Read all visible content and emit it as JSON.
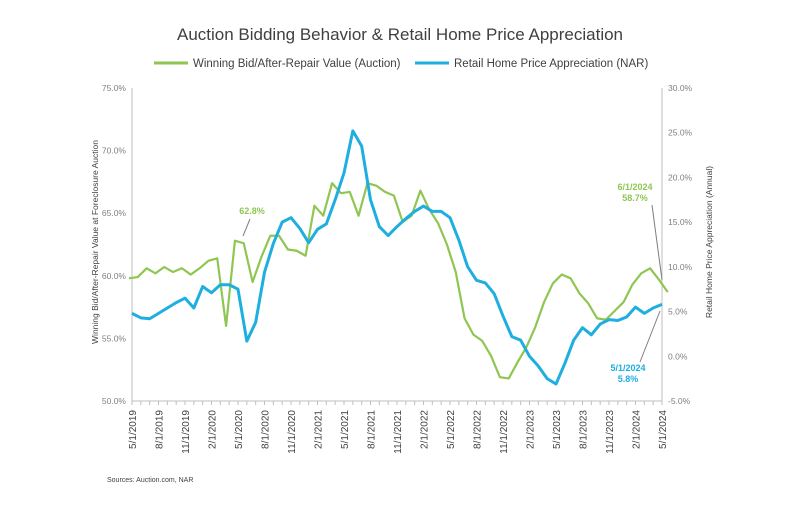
{
  "colors": {
    "auction": "#8fc652",
    "retail": "#1eaee0",
    "axis": "#bfbfbf"
  },
  "chart_data": {
    "type": "line",
    "title": "Auction Bidding Behavior & Retail Home Price Appreciation",
    "legend": [
      "Winning Bid/After-Repair Value (Auction)",
      "Retail Home Price Appreciation (NAR)"
    ],
    "legend_position": "top",
    "ylabel_left": "Winning Bid/After-Repair Value at Foreclosure Auction",
    "ylabel_right": "Retail Home Price Appreciation (Annual)",
    "ylim_left": [
      50,
      75
    ],
    "ylim_right": [
      -5,
      30
    ],
    "yticks_left": [
      "50.0%",
      "55.0%",
      "60.0%",
      "65.0%",
      "70.0%",
      "75.0%"
    ],
    "yticks_right": [
      "-5.0%",
      "0.0%",
      "5.0%",
      "10.0%",
      "15.0%",
      "20.0%",
      "25.0%",
      "30.0%"
    ],
    "xtick_labels": [
      "5/1/2019",
      "8/1/2019",
      "11/1/2019",
      "2/1/2020",
      "5/1/2020",
      "8/1/2020",
      "11/1/2020",
      "2/1/2021",
      "5/1/2021",
      "8/1/2021",
      "11/1/2021",
      "2/1/2022",
      "5/1/2022",
      "8/1/2022",
      "11/1/2022",
      "2/1/2023",
      "5/1/2023",
      "8/1/2023",
      "11/1/2023",
      "2/1/2024",
      "5/1/2024"
    ],
    "series": [
      {
        "name": "Winning Bid/After-Repair Value (Auction)",
        "axis": "left",
        "start": "5/1/2019",
        "values": [
          59.8,
          59.9,
          60.6,
          60.2,
          60.7,
          60.3,
          60.6,
          60.1,
          60.6,
          61.2,
          61.4,
          56.0,
          62.8,
          62.6,
          59.5,
          61.5,
          63.2,
          63.2,
          62.1,
          62.0,
          61.6,
          65.6,
          64.8,
          67.4,
          66.6,
          66.7,
          64.8,
          67.4,
          67.2,
          66.7,
          66.4,
          64.3,
          64.8,
          66.8,
          65.3,
          64.2,
          62.5,
          60.3,
          56.6,
          55.3,
          54.8,
          53.6,
          51.9,
          51.8,
          53.1,
          54.3,
          55.9,
          57.9,
          59.4,
          60.1,
          59.8,
          58.6,
          57.8,
          56.6,
          56.5,
          57.2,
          57.9,
          59.3,
          60.2,
          60.6,
          59.7,
          58.7
        ]
      },
      {
        "name": "Retail Home Price Appreciation (NAR)",
        "axis": "right",
        "start": "5/1/2019",
        "values": [
          4.8,
          4.3,
          4.2,
          4.8,
          5.4,
          6.0,
          6.5,
          5.4,
          7.8,
          7.1,
          8.0,
          8.0,
          7.5,
          1.7,
          3.8,
          9.4,
          12.6,
          15.0,
          15.5,
          14.3,
          12.7,
          14.2,
          14.8,
          17.5,
          20.5,
          25.2,
          23.5,
          17.5,
          14.5,
          13.5,
          14.5,
          15.4,
          16.2,
          16.8,
          16.2,
          16.2,
          15.5,
          13.0,
          10.0,
          8.5,
          8.2,
          7.0,
          4.5,
          2.2,
          1.8,
          0.0,
          -1.1,
          -2.5,
          -3.1,
          -0.8,
          1.8,
          3.2,
          2.4,
          3.6,
          4.1,
          4.0,
          4.4,
          5.5,
          4.8,
          5.4,
          5.8
        ]
      }
    ],
    "annotations": [
      {
        "text": "62.8%",
        "series": "auction",
        "date": "5/1/2020"
      },
      {
        "text": "6/1/2024",
        "series": "auction",
        "value": "58.7%"
      },
      {
        "text": "5/1/2024",
        "series": "retail",
        "value": "5.8%"
      }
    ],
    "sources": "Sources: Auction.com, NAR"
  }
}
